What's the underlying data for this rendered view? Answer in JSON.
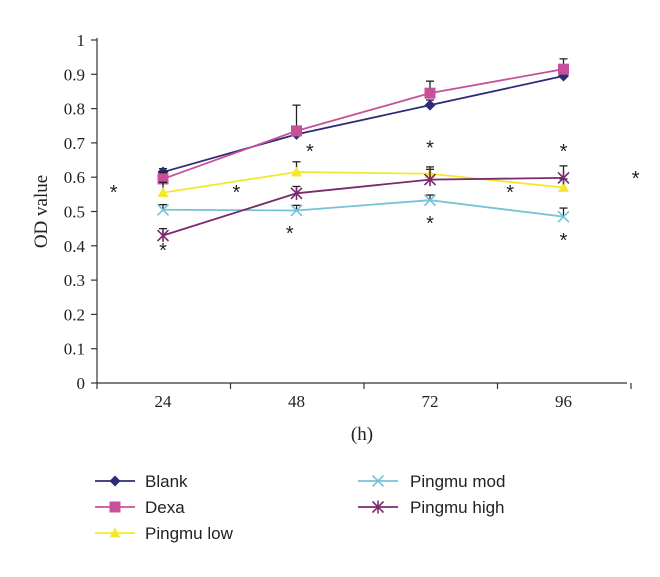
{
  "chart_data": {
    "type": "line",
    "title": "",
    "xlabel": "(h)",
    "ylabel": "OD value",
    "categories": [
      "24",
      "48",
      "72",
      "96"
    ],
    "ylim": [
      0,
      1
    ],
    "yticks": [
      "0",
      "0.1",
      "0.2",
      "0.3",
      "0.4",
      "0.5",
      "0.6",
      "0.7",
      "0.8",
      "0.9",
      "1"
    ],
    "grid": false,
    "legend_position": "bottom",
    "series": [
      {
        "name": "Blank",
        "values": [
          0.615,
          0.725,
          0.81,
          0.895
        ],
        "err": [
          0.01,
          0.01,
          0.015,
          0.01
        ],
        "color": "#2e2b7a",
        "marker": "diamond"
      },
      {
        "name": "Dexa",
        "values": [
          0.595,
          0.735,
          0.845,
          0.915
        ],
        "err": [
          0.02,
          0.075,
          0.035,
          0.03
        ],
        "color": "#c8509a",
        "marker": "square"
      },
      {
        "name": "Pingmu low",
        "values": [
          0.555,
          0.615,
          0.61,
          0.57
        ],
        "err": [
          0.03,
          0.03,
          0.02,
          0.025
        ],
        "color": "#f2e92e",
        "marker": "triangle"
      },
      {
        "name": "Pingmu mod",
        "values": [
          0.505,
          0.503,
          0.533,
          0.485
        ],
        "err": [
          0.015,
          0.015,
          0.015,
          0.025
        ],
        "color": "#74c3d6",
        "marker": "x"
      },
      {
        "name": "Pingmu high",
        "values": [
          0.43,
          0.553,
          0.593,
          0.598
        ],
        "err": [
          0.02,
          0.02,
          0.03,
          0.035
        ],
        "color": "#7a2a6e",
        "marker": "star"
      }
    ],
    "annotations": [
      {
        "text": "*",
        "x_index": 0,
        "dx": -0.37,
        "y": 0.56
      },
      {
        "text": "*",
        "x_index": 0,
        "dx": 0.0,
        "y": 0.39
      },
      {
        "text": "*",
        "x_index": 1,
        "dx": -0.45,
        "y": 0.56
      },
      {
        "text": "*",
        "x_index": 1,
        "dx": 0.1,
        "y": 0.68
      },
      {
        "text": "*",
        "x_index": 1,
        "dx": -0.05,
        "y": 0.44
      },
      {
        "text": "*",
        "x_index": 2,
        "dx": 0.0,
        "y": 0.69
      },
      {
        "text": "*",
        "x_index": 2,
        "dx": 0.6,
        "y": 0.56
      },
      {
        "text": "*",
        "x_index": 2,
        "dx": 0.0,
        "y": 0.47
      },
      {
        "text": "*",
        "x_index": 3,
        "dx": 0.0,
        "y": 0.68
      },
      {
        "text": "*",
        "x_index": 3,
        "dx": 0.54,
        "y": 0.6
      },
      {
        "text": "*",
        "x_index": 3,
        "dx": 0.0,
        "y": 0.42
      }
    ]
  }
}
